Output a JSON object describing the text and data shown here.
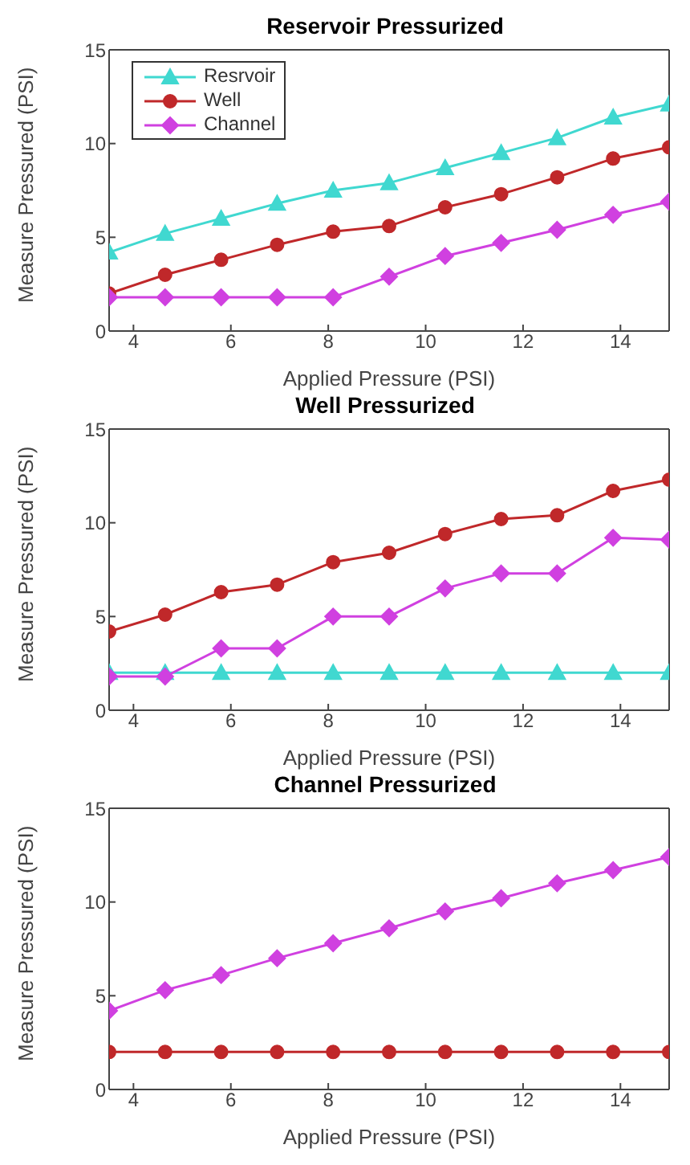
{
  "chart_data": [
    {
      "type": "line",
      "title": "Reservoir Pressurized",
      "xlabel": "Applied Pressure (PSI)",
      "ylabel": "Measure Pressured (PSI)",
      "x": [
        3.5,
        4.65,
        5.8,
        6.95,
        8.1,
        9.25,
        10.4,
        11.55,
        12.7,
        13.85,
        15
      ],
      "xlim": [
        3.5,
        15
      ],
      "xticks": [
        4,
        6,
        8,
        10,
        12,
        14
      ],
      "ylim": [
        0,
        15
      ],
      "yticks": [
        0,
        5,
        10,
        15
      ],
      "grid": false,
      "legend": "top left",
      "series": [
        {
          "name": "Resrvoir",
          "color": "#40d8d0",
          "marker": "triangle",
          "values": [
            4.2,
            5.2,
            6.0,
            6.8,
            7.5,
            7.9,
            8.7,
            9.5,
            10.3,
            11.4,
            12.1
          ]
        },
        {
          "name": "Well",
          "color": "#c0282a",
          "marker": "circle",
          "values": [
            2.0,
            3.0,
            3.8,
            4.6,
            5.3,
            5.6,
            6.6,
            7.3,
            8.2,
            9.2,
            9.8
          ]
        },
        {
          "name": "Channel",
          "color": "#d040e0",
          "marker": "diamond",
          "values": [
            1.8,
            1.8,
            1.8,
            1.8,
            1.8,
            2.9,
            4.0,
            4.7,
            5.4,
            6.2,
            6.9
          ]
        }
      ]
    },
    {
      "type": "line",
      "title": "Well Pressurized",
      "xlabel": "Applied Pressure (PSI)",
      "ylabel": "Measure Pressured (PSI)",
      "x": [
        3.5,
        4.65,
        5.8,
        6.95,
        8.1,
        9.25,
        10.4,
        11.55,
        12.7,
        13.85,
        15
      ],
      "xlim": [
        3.5,
        15
      ],
      "xticks": [
        4,
        6,
        8,
        10,
        12,
        14
      ],
      "ylim": [
        0,
        15
      ],
      "yticks": [
        0,
        5,
        10,
        15
      ],
      "grid": false,
      "series": [
        {
          "color": "#40d8d0",
          "marker": "triangle",
          "values": [
            2.0,
            2.0,
            2.0,
            2.0,
            2.0,
            2.0,
            2.0,
            2.0,
            2.0,
            2.0,
            2.0
          ]
        },
        {
          "color": "#c0282a",
          "marker": "circle",
          "values": [
            4.2,
            5.1,
            6.3,
            6.7,
            7.9,
            8.4,
            9.4,
            10.2,
            10.4,
            11.7,
            12.3
          ]
        },
        {
          "color": "#d040e0",
          "marker": "diamond",
          "values": [
            1.8,
            1.8,
            3.3,
            3.3,
            5.0,
            5.0,
            6.5,
            7.3,
            7.3,
            9.2,
            9.1
          ]
        }
      ]
    },
    {
      "type": "line",
      "title": "Channel Pressurized",
      "xlabel": "Applied Pressure (PSI)",
      "ylabel": "Measure Pressured (PSI)",
      "x": [
        3.5,
        4.65,
        5.8,
        6.95,
        8.1,
        9.25,
        10.4,
        11.55,
        12.7,
        13.85,
        15
      ],
      "xlim": [
        3.5,
        15
      ],
      "xticks": [
        4,
        6,
        8,
        10,
        12,
        14
      ],
      "ylim": [
        0,
        15
      ],
      "yticks": [
        0,
        5,
        10,
        15
      ],
      "grid": false,
      "series": [
        {
          "color": "#c0282a",
          "marker": "circle",
          "values": [
            2.0,
            2.0,
            2.0,
            2.0,
            2.0,
            2.0,
            2.0,
            2.0,
            2.0,
            2.0,
            2.0
          ]
        },
        {
          "color": "#d040e0",
          "marker": "diamond",
          "values": [
            4.2,
            5.3,
            6.1,
            7.0,
            7.8,
            8.6,
            9.5,
            10.2,
            11.0,
            11.7,
            12.4
          ]
        }
      ]
    }
  ]
}
